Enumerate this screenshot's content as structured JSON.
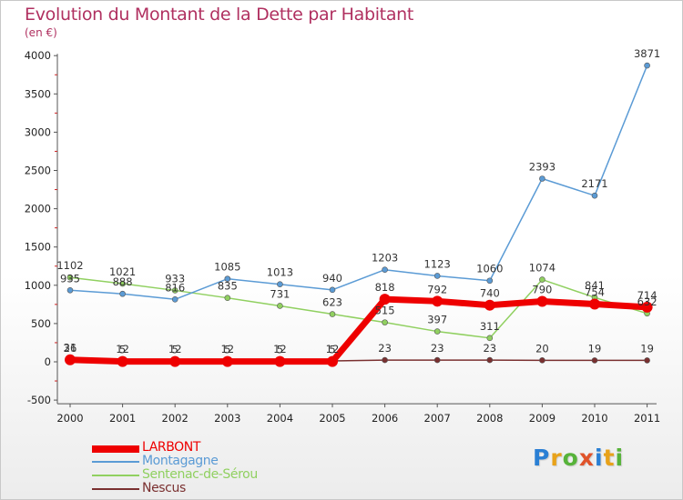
{
  "header": {
    "title": "Evolution du Montant de la Dette par Habitant",
    "unit": "(en €)"
  },
  "logo": {
    "letters": [
      "P",
      "r",
      "o",
      "x",
      "i",
      "t",
      "i"
    ],
    "colors": [
      "#2a7fd4",
      "#e8a21a",
      "#57b33a",
      "#e0532a",
      "#2a7fd4",
      "#e8a21a",
      "#57b33a"
    ]
  },
  "chart_data": {
    "type": "line",
    "title": "Evolution du Montant de la Dette par Habitant",
    "subtitle": "(en €)",
    "xlabel": "",
    "ylabel": "",
    "ylim": [
      -500,
      4000
    ],
    "yticks": [
      -500,
      0,
      500,
      1000,
      1500,
      2000,
      2500,
      3000,
      3500,
      4000
    ],
    "grid": false,
    "legend_position": "bottom-left",
    "categories": [
      "2000",
      "2001",
      "2002",
      "2003",
      "2004",
      "2005",
      "2006",
      "2007",
      "2008",
      "2009",
      "2010",
      "2011"
    ],
    "series": [
      {
        "name": "LARBONT",
        "color": "#ee0000",
        "values": [
          26,
          5,
          5,
          5,
          5,
          5,
          818,
          792,
          740,
          790,
          754,
          714
        ],
        "labels": [
          "26",
          "5",
          "5",
          "5",
          "5",
          "5",
          "818",
          "792",
          "740",
          "790",
          "754",
          "714"
        ]
      },
      {
        "name": "Montagagne",
        "color": "#5b9bd5",
        "values": [
          935,
          888,
          816,
          1085,
          1013,
          940,
          1203,
          1123,
          1060,
          2393,
          2171,
          3871
        ],
        "labels": [
          "935",
          "888",
          "816",
          "1085",
          "1013",
          "940",
          "1203",
          "1123",
          "1060",
          "2393",
          "2171",
          "3871"
        ]
      },
      {
        "name": "Sentenac-de-Sérou",
        "color": "#90d060",
        "values": [
          1102,
          1021,
          933,
          835,
          731,
          623,
          515,
          397,
          311,
          1074,
          841,
          632
        ],
        "labels": [
          "1102",
          "1021",
          "933",
          "835",
          "731",
          "623",
          "515",
          "397",
          "311",
          "1074",
          "841",
          "632"
        ]
      },
      {
        "name": "Nescus",
        "color": "#7a3030",
        "values": [
          31,
          12,
          12,
          12,
          12,
          12,
          23,
          23,
          23,
          20,
          19,
          19
        ],
        "labels": [
          "31",
          "12",
          "12",
          "12",
          "12",
          "12",
          "23",
          "23",
          "23",
          "20",
          "19",
          "19"
        ]
      }
    ]
  }
}
